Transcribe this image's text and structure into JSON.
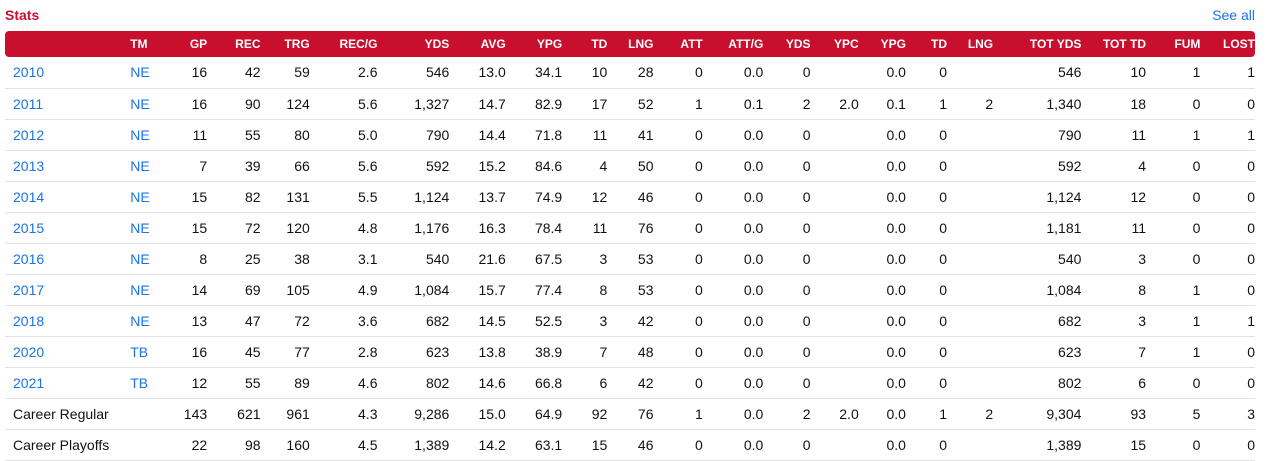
{
  "header": {
    "title": "Stats",
    "see_all": "See all"
  },
  "columns": [
    "",
    "TM",
    "GP",
    "REC",
    "TRG",
    "REC/G",
    "YDS",
    "AVG",
    "YPG",
    "TD",
    "LNG",
    "ATT",
    "ATT/G",
    "YDS",
    "YPC",
    "YPG",
    "TD",
    "LNG",
    "TOT YDS",
    "TOT TD",
    "FUM",
    "LOST"
  ],
  "rows": [
    [
      "2010",
      "NE",
      "16",
      "42",
      "59",
      "2.6",
      "546",
      "13.0",
      "34.1",
      "10",
      "28",
      "0",
      "0.0",
      "0",
      "",
      "0.0",
      "0",
      "",
      "546",
      "10",
      "1",
      "1"
    ],
    [
      "2011",
      "NE",
      "16",
      "90",
      "124",
      "5.6",
      "1,327",
      "14.7",
      "82.9",
      "17",
      "52",
      "1",
      "0.1",
      "2",
      "2.0",
      "0.1",
      "1",
      "2",
      "1,340",
      "18",
      "0",
      "0"
    ],
    [
      "2012",
      "NE",
      "11",
      "55",
      "80",
      "5.0",
      "790",
      "14.4",
      "71.8",
      "11",
      "41",
      "0",
      "0.0",
      "0",
      "",
      "0.0",
      "0",
      "",
      "790",
      "11",
      "1",
      "1"
    ],
    [
      "2013",
      "NE",
      "7",
      "39",
      "66",
      "5.6",
      "592",
      "15.2",
      "84.6",
      "4",
      "50",
      "0",
      "0.0",
      "0",
      "",
      "0.0",
      "0",
      "",
      "592",
      "4",
      "0",
      "0"
    ],
    [
      "2014",
      "NE",
      "15",
      "82",
      "131",
      "5.5",
      "1,124",
      "13.7",
      "74.9",
      "12",
      "46",
      "0",
      "0.0",
      "0",
      "",
      "0.0",
      "0",
      "",
      "1,124",
      "12",
      "0",
      "0"
    ],
    [
      "2015",
      "NE",
      "15",
      "72",
      "120",
      "4.8",
      "1,176",
      "16.3",
      "78.4",
      "11",
      "76",
      "0",
      "0.0",
      "0",
      "",
      "0.0",
      "0",
      "",
      "1,181",
      "11",
      "0",
      "0"
    ],
    [
      "2016",
      "NE",
      "8",
      "25",
      "38",
      "3.1",
      "540",
      "21.6",
      "67.5",
      "3",
      "53",
      "0",
      "0.0",
      "0",
      "",
      "0.0",
      "0",
      "",
      "540",
      "3",
      "0",
      "0"
    ],
    [
      "2017",
      "NE",
      "14",
      "69",
      "105",
      "4.9",
      "1,084",
      "15.7",
      "77.4",
      "8",
      "53",
      "0",
      "0.0",
      "0",
      "",
      "0.0",
      "0",
      "",
      "1,084",
      "8",
      "1",
      "0"
    ],
    [
      "2018",
      "NE",
      "13",
      "47",
      "72",
      "3.6",
      "682",
      "14.5",
      "52.5",
      "3",
      "42",
      "0",
      "0.0",
      "0",
      "",
      "0.0",
      "0",
      "",
      "682",
      "3",
      "1",
      "1"
    ],
    [
      "2020",
      "TB",
      "16",
      "45",
      "77",
      "2.8",
      "623",
      "13.8",
      "38.9",
      "7",
      "48",
      "0",
      "0.0",
      "0",
      "",
      "0.0",
      "0",
      "",
      "623",
      "7",
      "1",
      "0"
    ],
    [
      "2021",
      "TB",
      "12",
      "55",
      "89",
      "4.6",
      "802",
      "14.6",
      "66.8",
      "6",
      "42",
      "0",
      "0.0",
      "0",
      "",
      "0.0",
      "0",
      "",
      "802",
      "6",
      "0",
      "0"
    ],
    [
      "Career Regular",
      "",
      "143",
      "621",
      "961",
      "4.3",
      "9,286",
      "15.0",
      "64.9",
      "92",
      "76",
      "1",
      "0.0",
      "2",
      "2.0",
      "0.0",
      "1",
      "2",
      "9,304",
      "93",
      "5",
      "3"
    ],
    [
      "Career Playoffs",
      "",
      "22",
      "98",
      "160",
      "4.5",
      "1,389",
      "14.2",
      "63.1",
      "15",
      "46",
      "0",
      "0.0",
      "0",
      "",
      "0.0",
      "0",
      "",
      "1,389",
      "15",
      "0",
      "0"
    ]
  ],
  "colors": {
    "header_bg": "#c8102e",
    "link": "#1a73e8"
  }
}
